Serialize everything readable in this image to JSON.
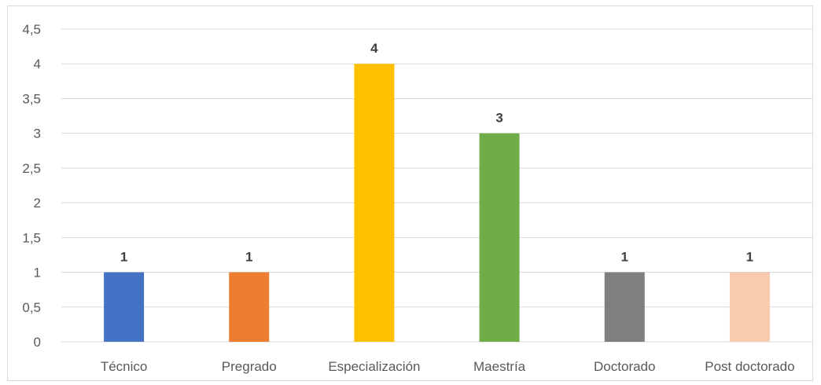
{
  "chart_data": {
    "type": "bar",
    "categories": [
      "Técnico",
      "Pregrado",
      "Especialización",
      "Maestría",
      "Doctorado",
      "Post doctorado"
    ],
    "values": [
      1,
      1,
      4,
      3,
      1,
      1
    ],
    "data_labels": [
      "1",
      "1",
      "4",
      "3",
      "1",
      "1"
    ],
    "colors": [
      "#4472c4",
      "#ed7d31",
      "#ffc000",
      "#70ad47",
      "#7f7f7f",
      "#f8cbad"
    ],
    "y_ticks": [
      {
        "value": 0,
        "label": "0"
      },
      {
        "value": 0.5,
        "label": "0,5"
      },
      {
        "value": 1,
        "label": "1"
      },
      {
        "value": 1.5,
        "label": "1,5"
      },
      {
        "value": 2,
        "label": "2"
      },
      {
        "value": 2.5,
        "label": "2,5"
      },
      {
        "value": 3,
        "label": "3"
      },
      {
        "value": 3.5,
        "label": "3,5"
      },
      {
        "value": 4,
        "label": "4"
      },
      {
        "value": 4.5,
        "label": "4,5"
      }
    ],
    "ylim": [
      0,
      4.5
    ],
    "title": "",
    "xlabel": "",
    "ylabel": "",
    "grid": true,
    "legend": "none",
    "gridline_color": "#d9d9d9",
    "axis_line_color": "#d9d9d9"
  }
}
